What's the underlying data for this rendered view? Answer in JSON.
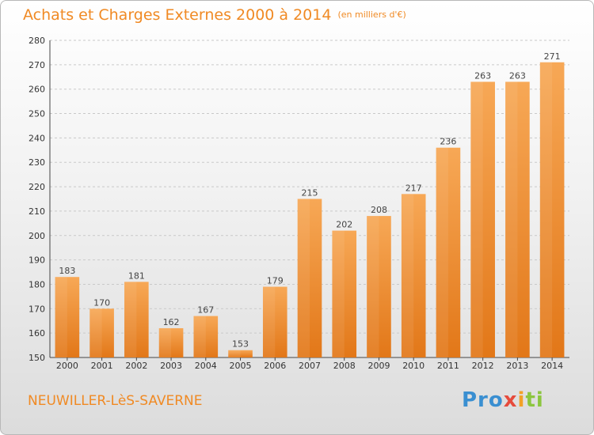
{
  "title": "Achats et Charges Externes 2000 à 2014",
  "unit_label": "(en milliers d'€)",
  "commune": "NEUWILLER-LèS-SAVERNE",
  "logo": {
    "p1": "Pro",
    "p2": "x",
    "p3": "i",
    "p4": "ti"
  },
  "colors": {
    "accent": "#f08a24",
    "bar_light": "#f7a552",
    "bar_dark": "#e67d1c"
  },
  "chart_data": {
    "type": "bar",
    "categories": [
      "2000",
      "2001",
      "2002",
      "2003",
      "2004",
      "2005",
      "2006",
      "2007",
      "2008",
      "2009",
      "2010",
      "2011",
      "2012",
      "2013",
      "2014"
    ],
    "values": [
      183,
      170,
      181,
      162,
      167,
      153,
      179,
      215,
      202,
      208,
      217,
      236,
      263,
      263,
      271
    ],
    "title": "Achats et Charges Externes 2000 à 2014",
    "ylim": [
      150,
      280
    ],
    "yticks": [
      150,
      160,
      170,
      180,
      190,
      200,
      210,
      220,
      230,
      240,
      250,
      260,
      270,
      280
    ],
    "grid": true,
    "data_labels": true
  }
}
